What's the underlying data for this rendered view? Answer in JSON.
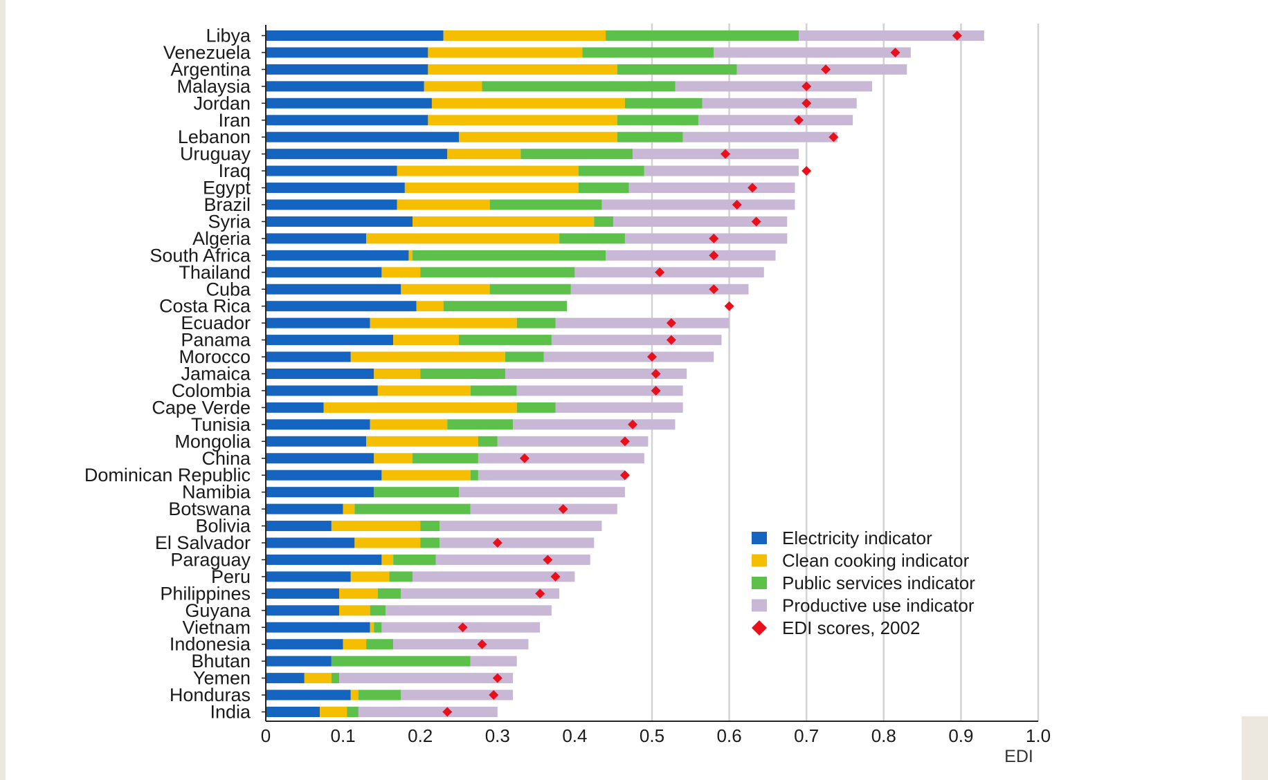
{
  "chart_data": {
    "type": "bar",
    "orientation": "horizontal",
    "stacked": true,
    "title": "",
    "xlabel": "EDI",
    "ylabel": "",
    "xlim": [
      0,
      1.0
    ],
    "x_ticks": [
      "0",
      "0.1",
      "0.2",
      "0.3",
      "0.4",
      "0.5",
      "0.6",
      "0.7",
      "0.8",
      "0.9",
      "1.0"
    ],
    "grid": "vertical lines at 0.5, 0.6, 0.7, 0.8, 0.9, 1.0",
    "legend_position": "bottom-right",
    "categories": [
      "Libya",
      "Venezuela",
      "Argentina",
      "Malaysia",
      "Jordan",
      "Iran",
      "Lebanon",
      "Uruguay",
      "Iraq",
      "Egypt",
      "Brazil",
      "Syria",
      "Algeria",
      "South Africa",
      "Thailand",
      "Cuba",
      "Costa Rica",
      "Ecuador",
      "Panama",
      "Morocco",
      "Jamaica",
      "Colombia",
      "Cape Verde",
      "Tunisia",
      "Mongolia",
      "China",
      "Dominican Republic",
      "Namibia",
      "Botswana",
      "Bolivia",
      "El Salvador",
      "Paraguay",
      "Peru",
      "Philippines",
      "Guyana",
      "Vietnam",
      "Indonesia",
      "Bhutan",
      "Yemen",
      "Honduras",
      "India"
    ],
    "series": [
      {
        "name": "Electricity indicator",
        "color": "#1565c0",
        "values": [
          0.23,
          0.21,
          0.21,
          0.205,
          0.215,
          0.21,
          0.25,
          0.235,
          0.17,
          0.18,
          0.17,
          0.19,
          0.13,
          0.185,
          0.15,
          0.175,
          0.195,
          0.135,
          0.165,
          0.11,
          0.14,
          0.145,
          0.075,
          0.135,
          0.13,
          0.14,
          0.15,
          0.14,
          0.1,
          0.085,
          0.115,
          0.15,
          0.11,
          0.095,
          0.095,
          0.135,
          0.1,
          0.085,
          0.05,
          0.11,
          0.07
        ]
      },
      {
        "name": "Clean cooking indicator",
        "color": "#f6be00",
        "values": [
          0.21,
          0.2,
          0.245,
          0.075,
          0.25,
          0.245,
          0.205,
          0.095,
          0.235,
          0.225,
          0.12,
          0.235,
          0.25,
          0.005,
          0.05,
          0.115,
          0.035,
          0.19,
          0.085,
          0.2,
          0.06,
          0.12,
          0.25,
          0.1,
          0.145,
          0.05,
          0.115,
          0.0,
          0.015,
          0.115,
          0.085,
          0.015,
          0.05,
          0.05,
          0.04,
          0.005,
          0.03,
          0.0,
          0.035,
          0.01,
          0.035
        ]
      },
      {
        "name": "Public services indicator",
        "color": "#5cc04a",
        "values": [
          0.25,
          0.17,
          0.155,
          0.25,
          0.1,
          0.105,
          0.085,
          0.145,
          0.085,
          0.065,
          0.145,
          0.025,
          0.085,
          0.25,
          0.2,
          0.105,
          0.16,
          0.05,
          0.12,
          0.05,
          0.11,
          0.06,
          0.05,
          0.085,
          0.025,
          0.085,
          0.01,
          0.11,
          0.15,
          0.025,
          0.025,
          0.055,
          0.03,
          0.03,
          0.02,
          0.01,
          0.035,
          0.18,
          0.01,
          0.055,
          0.015
        ]
      },
      {
        "name": "Productive use indicator",
        "color": "#c8b8d6",
        "values": [
          0.24,
          0.255,
          0.22,
          0.255,
          0.2,
          0.2,
          0.2,
          0.215,
          0.2,
          0.215,
          0.25,
          0.225,
          0.21,
          0.22,
          0.245,
          0.23,
          0.0,
          0.225,
          0.22,
          0.22,
          0.235,
          0.215,
          0.165,
          0.21,
          0.195,
          0.215,
          0.19,
          0.215,
          0.19,
          0.21,
          0.2,
          0.2,
          0.21,
          0.205,
          0.215,
          0.205,
          0.175,
          0.06,
          0.225,
          0.145,
          0.18
        ]
      }
    ],
    "edi_scores_2002": {
      "name": "EDI scores, 2002",
      "color": "#e8101a",
      "values": [
        0.895,
        0.815,
        0.725,
        0.7,
        0.7,
        0.69,
        0.735,
        0.595,
        0.7,
        0.63,
        0.61,
        0.635,
        0.58,
        0.58,
        0.51,
        0.58,
        0.6,
        0.525,
        0.525,
        0.5,
        0.505,
        0.505,
        null,
        0.475,
        0.465,
        0.335,
        0.465,
        null,
        0.385,
        null,
        0.3,
        0.365,
        0.375,
        0.355,
        null,
        0.255,
        0.28,
        null,
        0.3,
        0.295,
        0.235
      ]
    }
  }
}
